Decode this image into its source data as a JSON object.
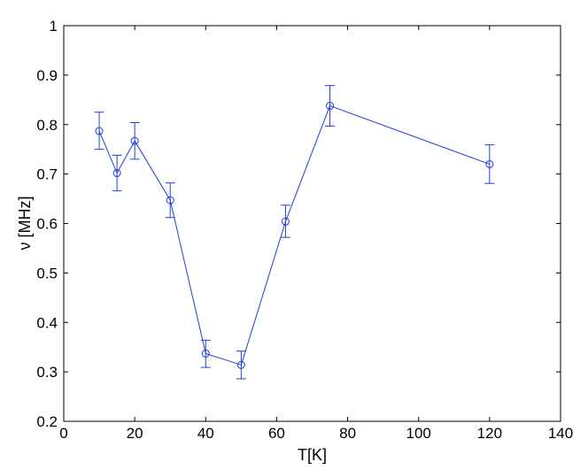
{
  "chart_data": {
    "type": "scatter",
    "title": "",
    "xlabel": "T[K]",
    "ylabel": "ν [MHz]",
    "xlim": [
      0,
      140
    ],
    "ylim": [
      0.2,
      1
    ],
    "xticks": [
      0,
      20,
      40,
      60,
      80,
      100,
      120,
      140
    ],
    "yticks": [
      0.2,
      0.3,
      0.4,
      0.5,
      0.6,
      0.7,
      0.8,
      0.9,
      1
    ],
    "xtick_labels": [
      "0",
      "20",
      "40",
      "60",
      "80",
      "100",
      "120",
      "140"
    ],
    "ytick_labels": [
      "0.2",
      "0.3",
      "0.4",
      "0.5",
      "0.6",
      "0.7",
      "0.8",
      "0.9",
      "1"
    ],
    "grid": false,
    "series": [
      {
        "color": "#1f3fd8",
        "marker": "circle",
        "line": "solid",
        "x": [
          10,
          15,
          20,
          30,
          40,
          50,
          62.5,
          75,
          120
        ],
        "y": [
          0.787,
          0.702,
          0.767,
          0.647,
          0.337,
          0.314,
          0.604,
          0.838,
          0.72
        ],
        "err_low": [
          0.037,
          0.036,
          0.037,
          0.035,
          0.028,
          0.028,
          0.032,
          0.041,
          0.039
        ],
        "err_high": [
          0.038,
          0.036,
          0.037,
          0.035,
          0.027,
          0.028,
          0.033,
          0.041,
          0.039
        ]
      }
    ]
  }
}
